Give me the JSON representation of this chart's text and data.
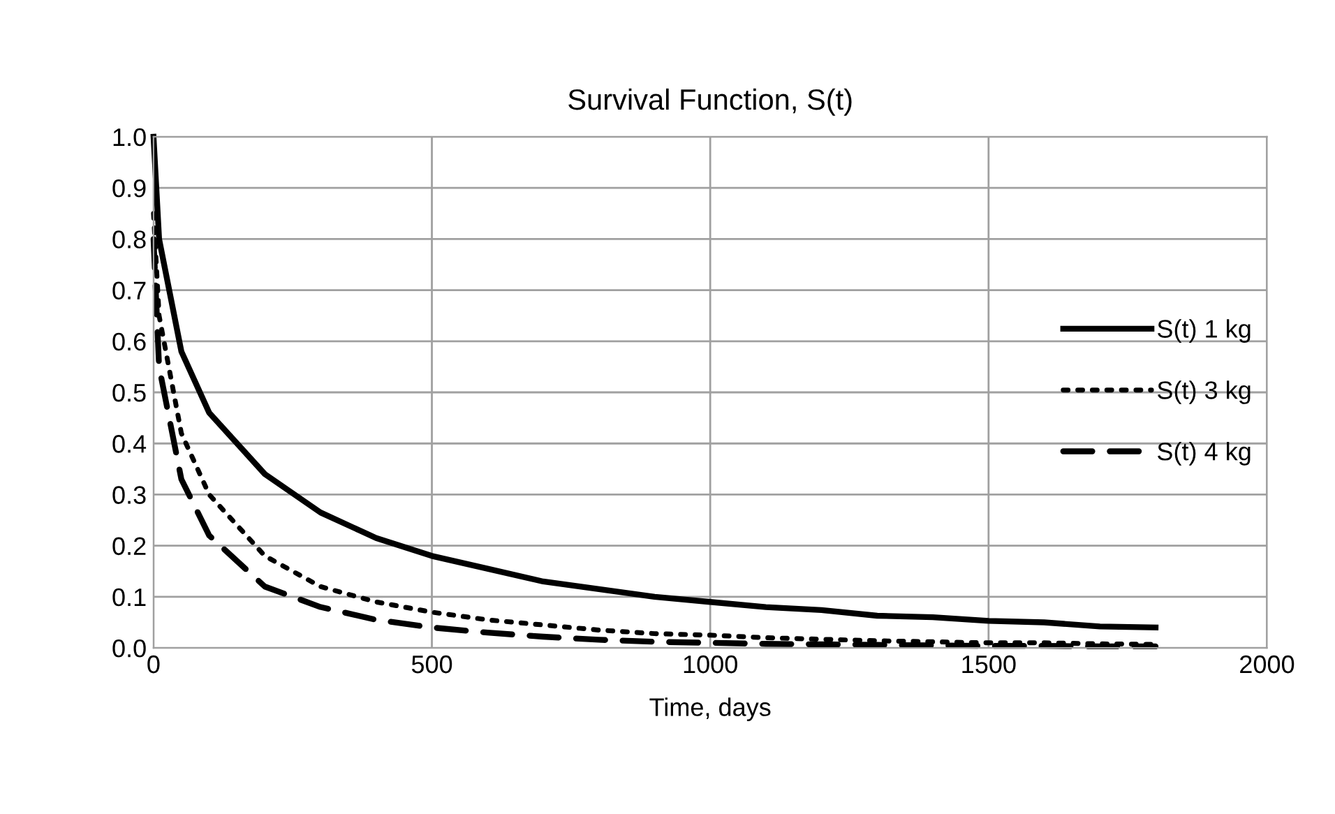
{
  "chart_data": {
    "type": "line",
    "title": "Survival Function, S(t)",
    "xlabel": "Time, days",
    "x": [
      0,
      10,
      50,
      100,
      200,
      300,
      400,
      500,
      600,
      700,
      800,
      900,
      1000,
      1100,
      1200,
      1300,
      1400,
      1500,
      1600,
      1700,
      1800
    ],
    "series": [
      {
        "name": "S(t) 1 kg",
        "color": "#000000",
        "line_style": "solid",
        "values": [
          1.0,
          0.8,
          0.58,
          0.46,
          0.34,
          0.265,
          0.215,
          0.18,
          0.155,
          0.13,
          0.115,
          0.1,
          0.09,
          0.08,
          0.074,
          0.063,
          0.06,
          0.053,
          0.05,
          0.042,
          0.04
        ]
      },
      {
        "name": "S(t) 3 kg",
        "color": "#000000",
        "line_style": "dotted",
        "values": [
          0.85,
          0.65,
          0.42,
          0.3,
          0.18,
          0.12,
          0.09,
          0.07,
          0.055,
          0.045,
          0.035,
          0.028,
          0.025,
          0.02,
          0.017,
          0.014,
          0.012,
          0.01,
          0.01,
          0.008,
          0.007
        ]
      },
      {
        "name": "S(t) 4 kg",
        "color": "#000000",
        "line_style": "dashed",
        "values": [
          0.8,
          0.55,
          0.33,
          0.22,
          0.12,
          0.08,
          0.055,
          0.04,
          0.03,
          0.022,
          0.016,
          0.012,
          0.01,
          0.008,
          0.007,
          0.006,
          0.005,
          0.004,
          0.004,
          0.003,
          0.003
        ]
      }
    ],
    "xlim": [
      0,
      2000
    ],
    "xticks": [
      0,
      500,
      1000,
      1500,
      2000
    ],
    "ylim": [
      0.0,
      1.0
    ],
    "yticks": [
      {
        "value": 0,
        "label": "0.0"
      },
      {
        "value": 0.1,
        "label": "0.1"
      },
      {
        "value": 0.2,
        "label": "0.2"
      },
      {
        "value": 0.3,
        "label": "0.3"
      },
      {
        "value": 0.4,
        "label": "0.4"
      },
      {
        "value": 0.5,
        "label": "0.5"
      },
      {
        "value": 0.6,
        "label": "0.6"
      },
      {
        "value": 0.7,
        "label": "0.7"
      },
      {
        "value": 0.8,
        "label": "0.8"
      },
      {
        "value": 0.9,
        "label": "0.9"
      },
      {
        "value": 1.0,
        "label": "1.0"
      }
    ],
    "grid": true,
    "legend": "right",
    "marker": "none"
  }
}
